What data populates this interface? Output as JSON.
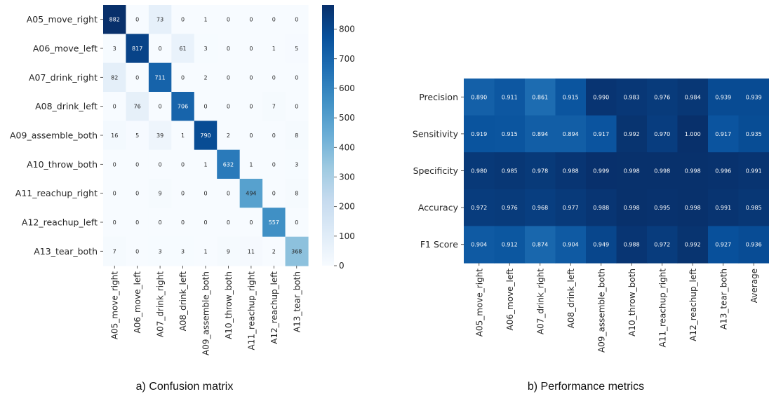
{
  "captions": {
    "left": "a) Confusion matrix",
    "right": "b) Performance metrics"
  },
  "colormap": [
    "#f7fbff",
    "#deebf7",
    "#c6dbef",
    "#9ecae1",
    "#6baed6",
    "#4292c6",
    "#2171b5",
    "#08519c",
    "#08306b"
  ],
  "chart_data": [
    {
      "type": "heatmap",
      "title": "",
      "rows": [
        "A05_move_right",
        "A06_move_left",
        "A07_drink_right",
        "A08_drink_left",
        "A09_assemble_both",
        "A10_throw_both",
        "A11_reachup_right",
        "A12_reachup_left",
        "A13_tear_both"
      ],
      "cols": [
        "A05_move_right",
        "A06_move_left",
        "A07_drink_right",
        "A08_drink_left",
        "A09_assemble_both",
        "A10_throw_both",
        "A11_reachup_right",
        "A12_reachup_left",
        "A13_tear_both"
      ],
      "values": [
        [
          882,
          0,
          73,
          0,
          1,
          0,
          0,
          0,
          0
        ],
        [
          3,
          817,
          0,
          61,
          3,
          0,
          0,
          1,
          5
        ],
        [
          82,
          0,
          711,
          0,
          2,
          0,
          0,
          0,
          0
        ],
        [
          0,
          76,
          0,
          706,
          0,
          0,
          0,
          7,
          0
        ],
        [
          16,
          5,
          39,
          1,
          790,
          2,
          0,
          0,
          8
        ],
        [
          0,
          0,
          0,
          0,
          1,
          632,
          1,
          0,
          3
        ],
        [
          0,
          0,
          9,
          0,
          0,
          0,
          494,
          0,
          8
        ],
        [
          0,
          0,
          0,
          0,
          0,
          0,
          0,
          557,
          0
        ],
        [
          7,
          0,
          3,
          3,
          1,
          9,
          11,
          2,
          368
        ]
      ],
      "vmin": 0,
      "vmax": 882,
      "colorbar_ticks": [
        0,
        100,
        200,
        300,
        400,
        500,
        600,
        700,
        800
      ],
      "colorbar_tick_labels": [
        "0",
        "100",
        "200",
        "300",
        "400",
        "500",
        "600",
        "700",
        "800"
      ]
    },
    {
      "type": "heatmap",
      "title": "",
      "rows": [
        "Precision",
        "Sensitivity",
        "Specificity",
        "Accuracy",
        "F1 Score"
      ],
      "cols": [
        "A05_move_right",
        "A06_move_left",
        "A07_drink_right",
        "A08_drink_left",
        "A09_assemble_both",
        "A10_throw_both",
        "A11_reachup_right",
        "A12_reachup_left",
        "A13_tear_both",
        "Average"
      ],
      "values": [
        [
          0.89,
          0.911,
          0.861,
          0.915,
          0.99,
          0.983,
          0.976,
          0.984,
          0.939,
          0.939
        ],
        [
          0.919,
          0.915,
          0.894,
          0.894,
          0.917,
          0.992,
          0.97,
          1.0,
          0.917,
          0.935
        ],
        [
          0.98,
          0.985,
          0.978,
          0.988,
          0.999,
          0.998,
          0.998,
          0.998,
          0.996,
          0.991
        ],
        [
          0.972,
          0.976,
          0.968,
          0.977,
          0.988,
          0.998,
          0.995,
          0.998,
          0.991,
          0.985
        ],
        [
          0.904,
          0.912,
          0.874,
          0.904,
          0.949,
          0.988,
          0.972,
          0.992,
          0.927,
          0.936
        ]
      ],
      "labels": [
        [
          "0.890",
          "0.911",
          "0.861",
          "0.915",
          "0.990",
          "0.983",
          "0.976",
          "0.984",
          "0.939",
          "0.939"
        ],
        [
          "0.919",
          "0.915",
          "0.894",
          "0.894",
          "0.917",
          "0.992",
          "0.970",
          "1.000",
          "0.917",
          "0.935"
        ],
        [
          "0.980",
          "0.985",
          "0.978",
          "0.988",
          "0.999",
          "0.998",
          "0.998",
          "0.998",
          "0.996",
          "0.991"
        ],
        [
          "0.972",
          "0.976",
          "0.968",
          "0.977",
          "0.988",
          "0.998",
          "0.995",
          "0.998",
          "0.991",
          "0.985"
        ],
        [
          "0.904",
          "0.912",
          "0.874",
          "0.904",
          "0.949",
          "0.988",
          "0.972",
          "0.992",
          "0.927",
          "0.936"
        ]
      ],
      "vmin": 0.4,
      "vmax": 1.0
    }
  ]
}
